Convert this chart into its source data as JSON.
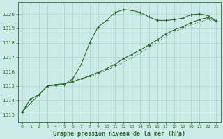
{
  "background_color": "#cceae7",
  "grid_color": "#aad4d0",
  "line_color": "#2d6e2d",
  "title": "Graphe pression niveau de la mer (hPa)",
  "xlim": [
    -0.5,
    23.5
  ],
  "ylim": [
    1012.5,
    1020.8
  ],
  "yticks": [
    1013,
    1014,
    1015,
    1016,
    1017,
    1018,
    1019,
    1020
  ],
  "xticks": [
    0,
    1,
    2,
    3,
    4,
    5,
    6,
    7,
    8,
    9,
    10,
    11,
    12,
    13,
    14,
    15,
    16,
    17,
    18,
    19,
    20,
    21,
    22,
    23
  ],
  "series1_x": [
    0,
    1,
    2,
    3,
    4,
    5,
    6,
    7,
    8,
    9,
    10,
    11,
    12,
    13,
    14,
    15,
    16,
    17,
    18,
    19,
    20,
    21,
    22,
    23
  ],
  "series1_y": [
    1013.2,
    1013.8,
    1014.4,
    1015.0,
    1015.05,
    1015.1,
    1015.5,
    1016.5,
    1018.0,
    1019.1,
    1019.55,
    1020.1,
    1020.3,
    1020.25,
    1020.1,
    1019.8,
    1019.55,
    1019.55,
    1019.6,
    1019.7,
    1019.95,
    1020.0,
    1019.9,
    1019.5
  ],
  "series2_x": [
    0,
    1,
    2,
    3,
    4,
    5,
    6,
    7,
    8,
    9,
    10,
    11,
    12,
    13,
    14,
    15,
    16,
    17,
    18,
    19,
    20,
    21,
    22,
    23
  ],
  "series2_y": [
    1013.2,
    1014.1,
    1014.4,
    1015.0,
    1015.1,
    1015.15,
    1015.3,
    1015.5,
    1015.7,
    1015.95,
    1016.2,
    1016.5,
    1016.9,
    1017.2,
    1017.5,
    1017.85,
    1018.2,
    1018.6,
    1018.9,
    1019.1,
    1019.4,
    1019.6,
    1019.75,
    1019.5
  ],
  "series3_x": [
    0,
    1,
    2,
    3,
    4,
    5,
    6,
    7,
    8,
    9,
    10,
    11,
    12,
    13,
    14,
    15,
    16,
    17,
    18,
    19,
    20,
    21,
    22,
    23
  ],
  "series3_y": [
    1013.2,
    1014.1,
    1014.4,
    1015.0,
    1015.1,
    1015.15,
    1015.3,
    1015.5,
    1015.65,
    1015.85,
    1016.1,
    1016.35,
    1016.65,
    1016.95,
    1017.3,
    1017.65,
    1018.05,
    1018.45,
    1018.75,
    1019.0,
    1019.25,
    1019.45,
    1019.6,
    1019.5
  ]
}
